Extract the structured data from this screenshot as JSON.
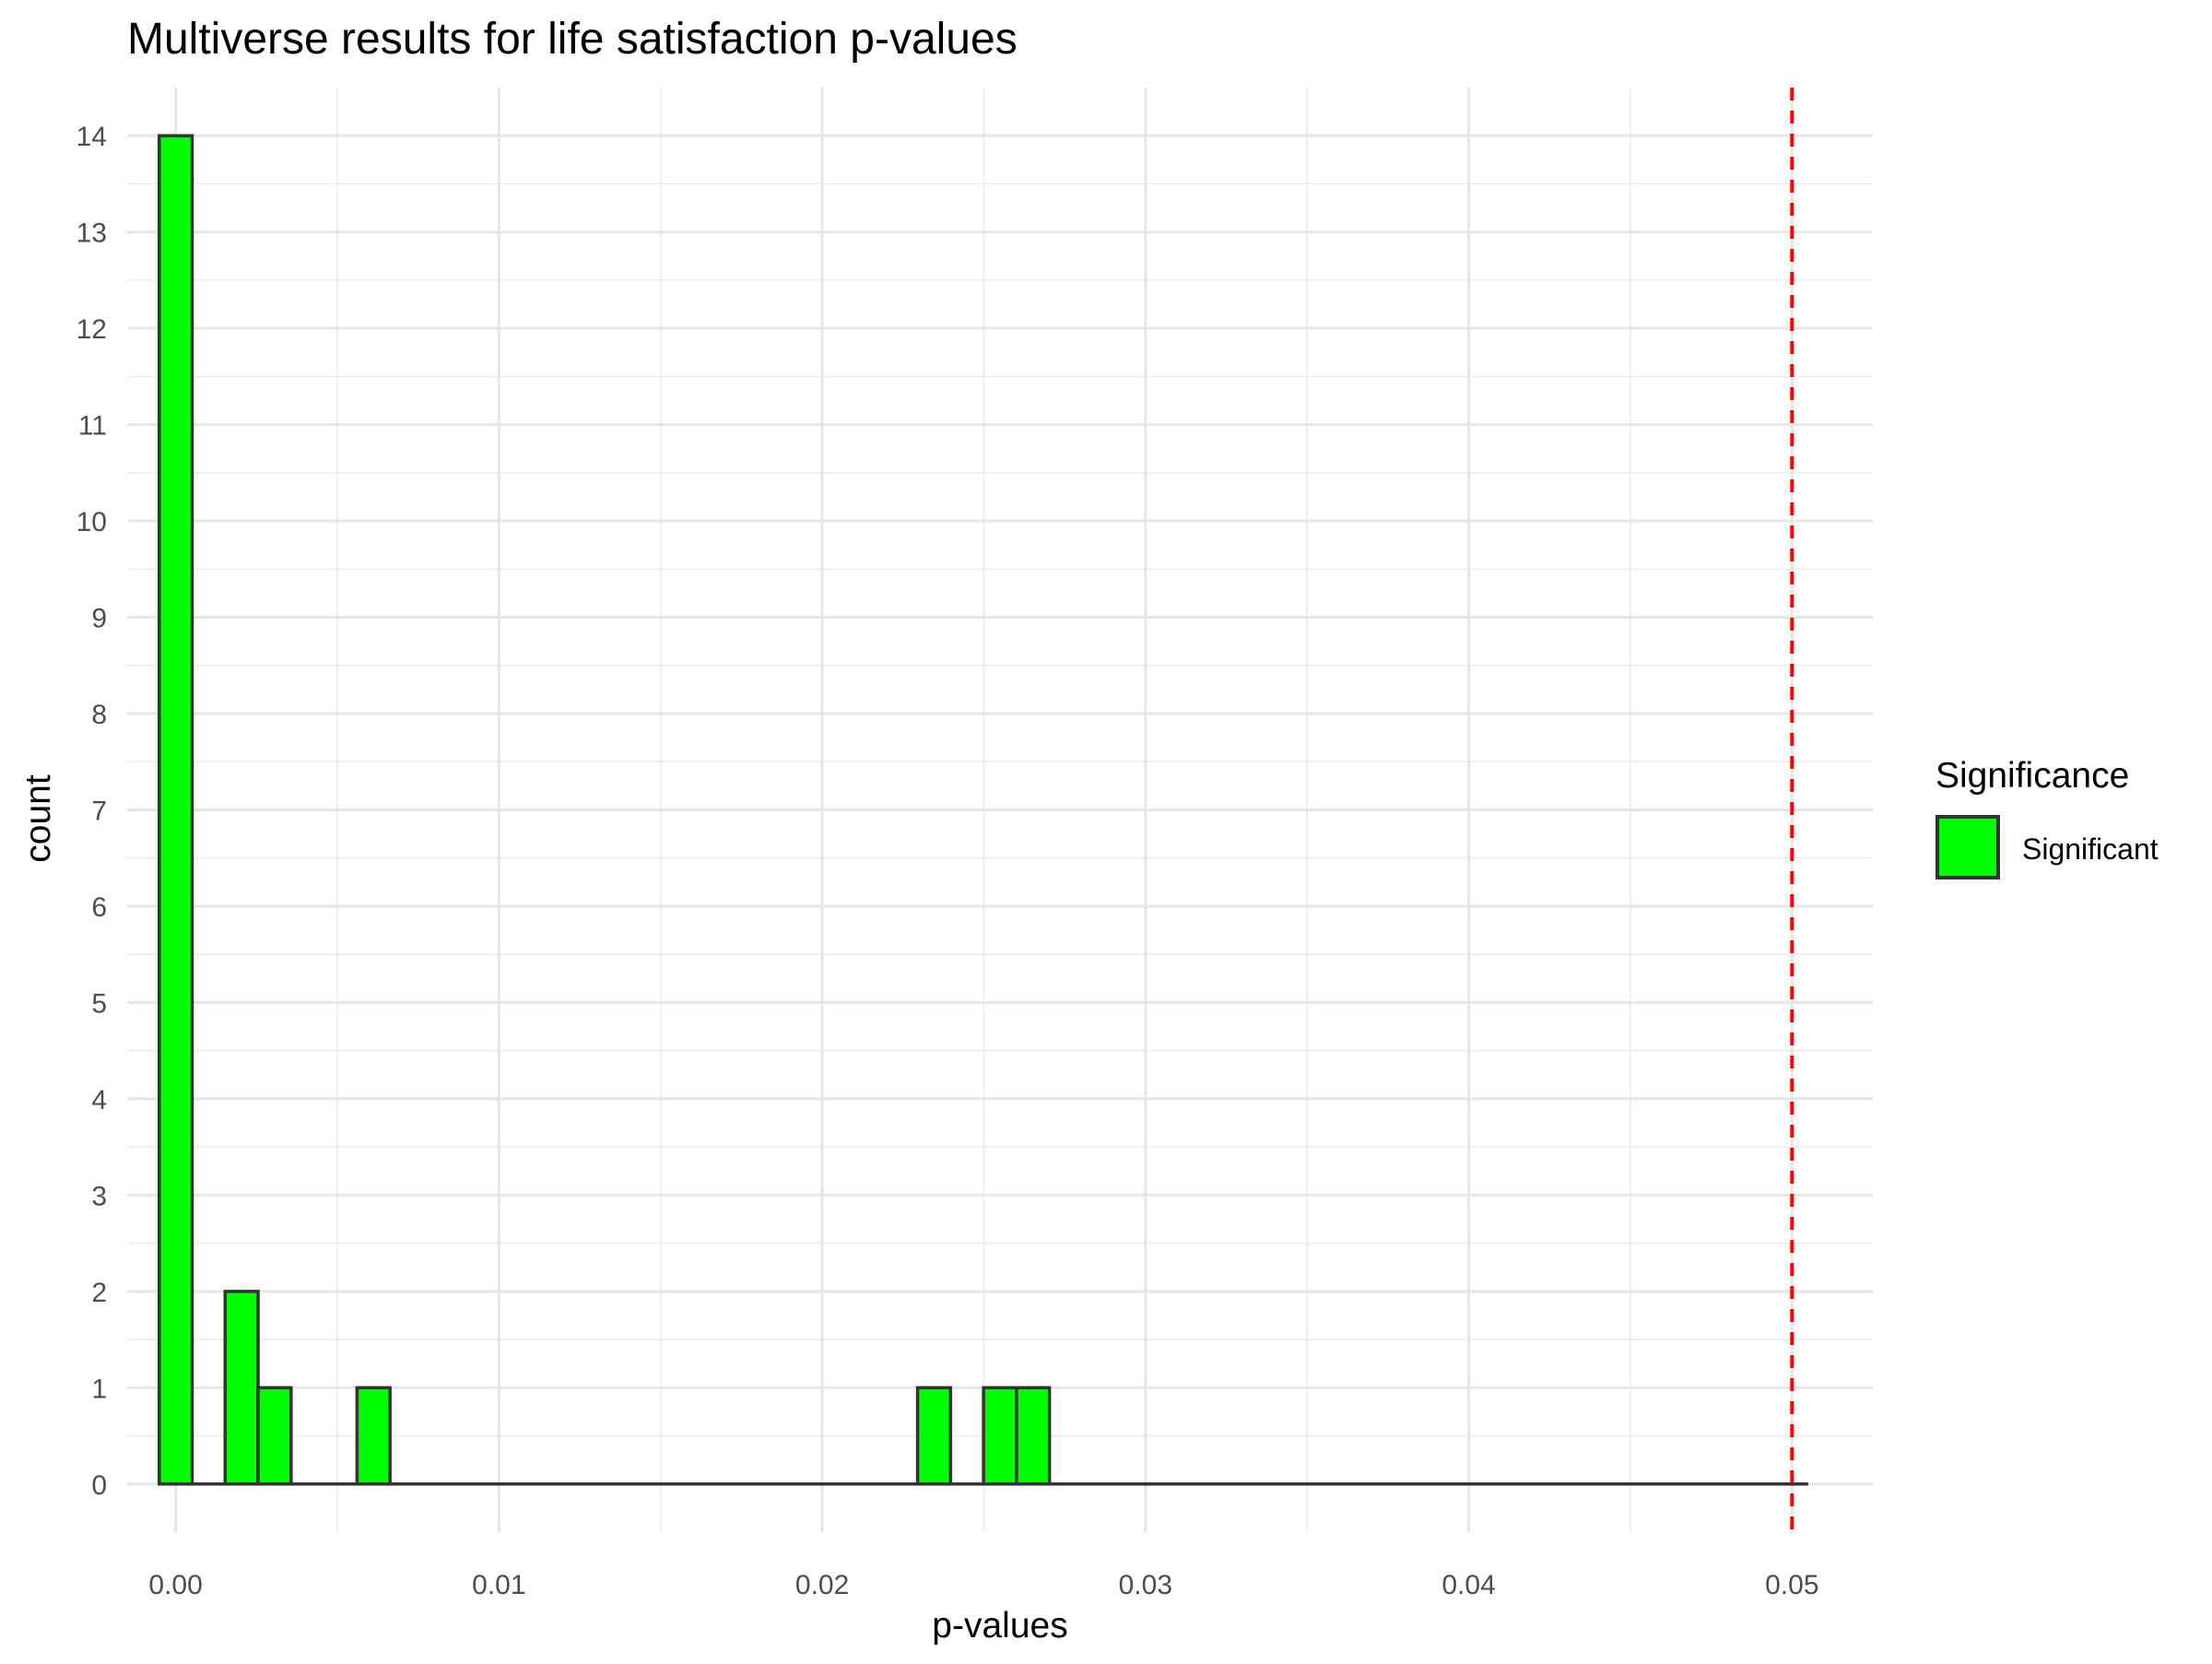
{
  "chart_data": {
    "type": "bar",
    "title": "Multiverse results for life satisfaction p-values",
    "xlabel": "p-values",
    "ylabel": "count",
    "xlim": [
      -0.0015,
      0.0525
    ],
    "ylim": [
      -0.5,
      14.5
    ],
    "x_ticks": [
      0.0,
      0.01,
      0.02,
      0.03,
      0.04,
      0.05
    ],
    "x_tick_labels": [
      "0.00",
      "0.01",
      "0.02",
      "0.03",
      "0.04",
      "0.05"
    ],
    "y_ticks": [
      0,
      1,
      2,
      3,
      4,
      5,
      6,
      7,
      8,
      9,
      10,
      11,
      12,
      13,
      14
    ],
    "y_tick_labels": [
      "0",
      "1",
      "2",
      "3",
      "4",
      "5",
      "6",
      "7",
      "8",
      "9",
      "10",
      "11",
      "12",
      "13",
      "14"
    ],
    "bin_width": 0.00102,
    "bins": [
      {
        "x": 0.0,
        "count": 14
      },
      {
        "x": 0.00204,
        "count": 2
      },
      {
        "x": 0.00306,
        "count": 1
      },
      {
        "x": 0.00612,
        "count": 1
      },
      {
        "x": 0.02346,
        "count": 1
      },
      {
        "x": 0.0255,
        "count": 1
      },
      {
        "x": 0.02652,
        "count": 1
      }
    ],
    "baseline_range": [
      -0.00051,
      0.0505
    ],
    "reference_line": {
      "x": 0.05,
      "color": "#ff0000",
      "style": "dashed"
    },
    "fill_color": "#00ff00",
    "bar_outline_color": "#333333",
    "grid": true,
    "legend": {
      "title": "Significance",
      "placement": "right",
      "entries": [
        {
          "label": "Significant",
          "color": "#00ff00"
        }
      ]
    }
  }
}
